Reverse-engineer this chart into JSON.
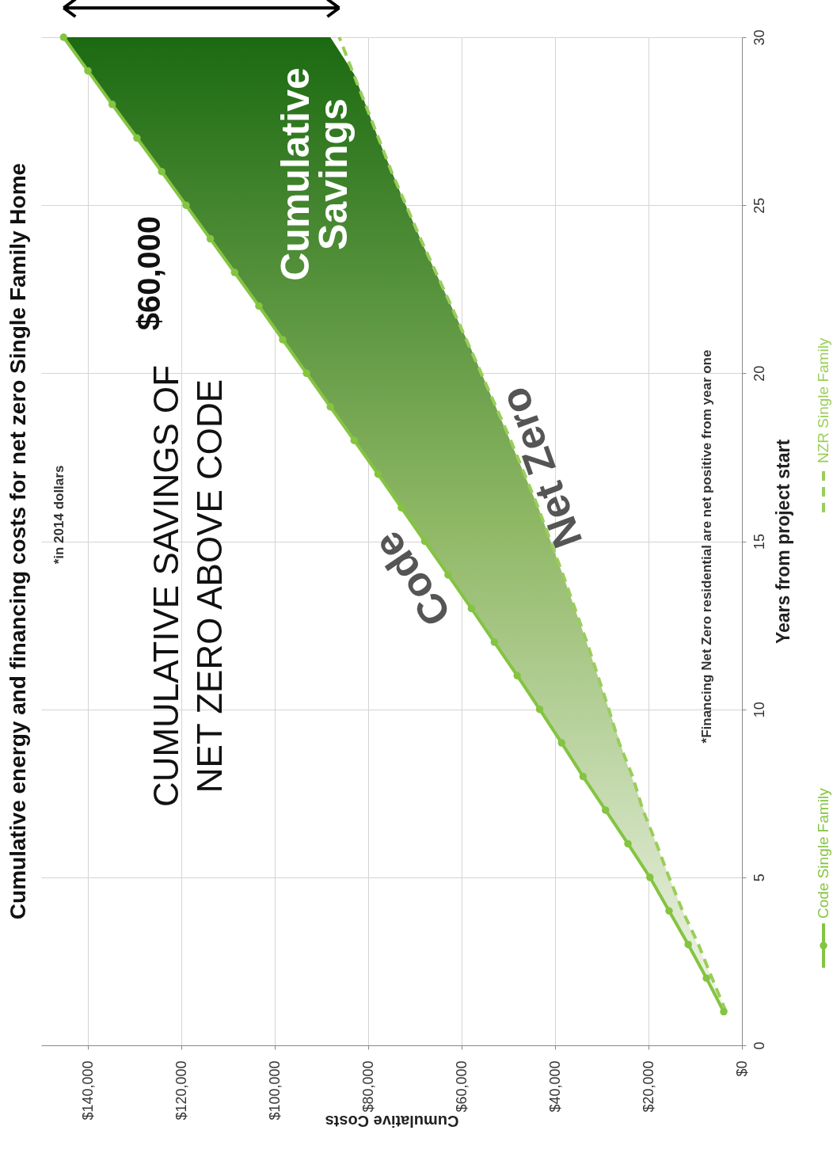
{
  "chart_data": {
    "type": "line",
    "title": "Cumulative energy and financing costs for net zero Single Family Home",
    "xlabel": "Cumulative Costs",
    "ylabel": "Years from project start",
    "xlim": [
      150000,
      0
    ],
    "ylim": [
      0,
      30
    ],
    "yticks": [
      0,
      5,
      10,
      15,
      20,
      25,
      30
    ],
    "xticks": [
      {
        "value": 0,
        "label": "$0"
      },
      {
        "value": 20000,
        "label": "$20,000"
      },
      {
        "value": 40000,
        "label": "$40,000"
      },
      {
        "value": 60000,
        "label": "$60,000"
      },
      {
        "value": 80000,
        "label": "$80,000"
      },
      {
        "value": 100000,
        "label": "$100,000"
      },
      {
        "value": 120000,
        "label": "$120,000"
      },
      {
        "value": 140000,
        "label": "$140,000"
      }
    ],
    "grid": true,
    "legend": "right",
    "series": [
      {
        "name": "Code Single Family",
        "color": "#84c441",
        "marker": "circle",
        "line_style": "solid",
        "x": [
          3900,
          7600,
          11500,
          15600,
          19700,
          24400,
          29200,
          34000,
          38600,
          43300,
          48100,
          53000,
          57900,
          62900,
          67900,
          72900,
          77900,
          83000,
          88100,
          93200,
          98300,
          103400,
          108600,
          113800,
          119000,
          124200,
          129500,
          134800,
          140000,
          145200
        ],
        "values": [
          1,
          2,
          3,
          4,
          5,
          6,
          7,
          8,
          9,
          10,
          11,
          12,
          13,
          14,
          15,
          16,
          17,
          18,
          19,
          20,
          21,
          22,
          23,
          24,
          25,
          26,
          27,
          28,
          29,
          30
        ],
        "lower": [
          1,
          2,
          3,
          4,
          5,
          6,
          7,
          8,
          9,
          10,
          11,
          12,
          13,
          14,
          15,
          16,
          17,
          18,
          19,
          20,
          21,
          22,
          23,
          24,
          25,
          26,
          27,
          28,
          29,
          30
        ],
        "upper": [
          1.2,
          2.4,
          3.6,
          5,
          6.5,
          8.3,
          10.3,
          12.3,
          14.1,
          15.9,
          17.5,
          19.1,
          20.7,
          22.2,
          23.7,
          25.3,
          27,
          28.9,
          30,
          30,
          30,
          30,
          30,
          30,
          30,
          30,
          30,
          30,
          30,
          30
        ]
      },
      {
        "name": "NZR Single Family",
        "color": "#9acd5a",
        "marker": "none",
        "line_style": "dashed",
        "x": [
          3400,
          6400,
          9300,
          12700,
          15600,
          18300,
          21200,
          23400,
          26300,
          28500,
          33200,
          38300,
          43600,
          49500,
          55800,
          62200,
          68800,
          75000,
          80600,
          86200
        ],
        "values": [
          1,
          2,
          3,
          4,
          5,
          6,
          7,
          8,
          9,
          10,
          12,
          14,
          16,
          18,
          20,
          22,
          24,
          26,
          28,
          30
        ]
      }
    ],
    "annotations": [
      "*in 2014 dollars",
      "CUMULATIVE SAVINGS OF\nNET ZERO ABOVE CODE",
      "$60,000",
      "*Financing Net Zero residential are net positive from year one",
      "Cumulative\nSavings",
      "Code",
      "Net Zero"
    ]
  }
}
